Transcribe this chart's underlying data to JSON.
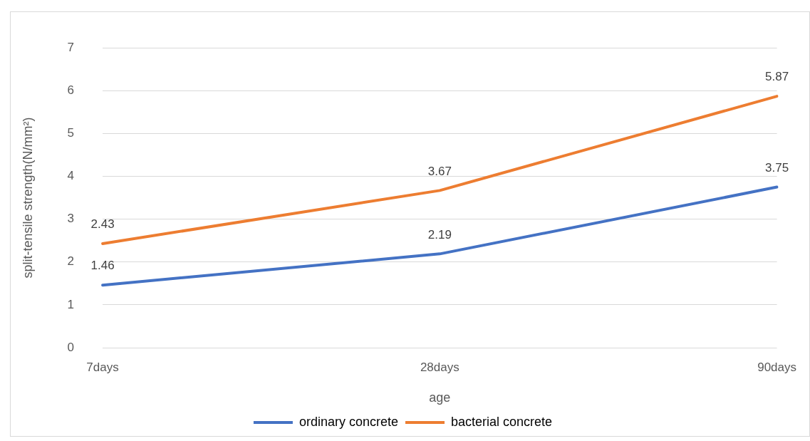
{
  "chart_data": {
    "type": "line",
    "xlabel": "age",
    "ylabel": "split-tensile strength(N/mm²)",
    "categories": [
      "7days",
      "28days",
      "90days"
    ],
    "series": [
      {
        "name": "ordinary concrete",
        "color": "#4472c4",
        "values": [
          1.46,
          2.19,
          3.75
        ]
      },
      {
        "name": "bacterial concrete",
        "color": "#ed7d31",
        "values": [
          2.43,
          3.67,
          5.87
        ]
      }
    ],
    "ylim": [
      0,
      7
    ],
    "yticks": [
      0,
      1,
      2,
      3,
      4,
      5,
      6,
      7
    ],
    "grid": "y",
    "legend": "bottom",
    "marker": "none",
    "line_style": "solid",
    "data_labels": true
  }
}
